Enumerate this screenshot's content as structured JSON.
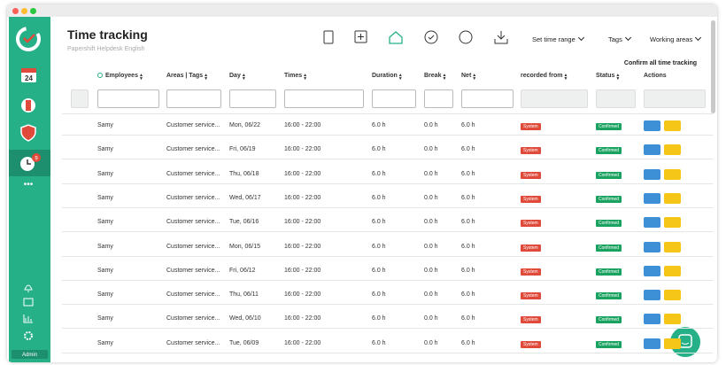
{
  "sidebar": {
    "calendar_day": "24",
    "badge": "9",
    "user": "Admin"
  },
  "header": {
    "title": "Time tracking",
    "subtitle": "Papershift Helpdesk English"
  },
  "filters": [
    "Set time range",
    "Tags",
    "Working areas"
  ],
  "confirm_all": "Confirm all time tracking",
  "table": {
    "columns": [
      "Employees",
      "Areas | Tags",
      "Day",
      "Times",
      "Duration",
      "Break",
      "Net",
      "recorded from",
      "Status",
      "Actions"
    ],
    "rows": [
      [
        "Samy",
        "Customer service...",
        "Mon, 06/22",
        "16:00 - 22:00",
        "6.0 h",
        "0.0 h",
        "6.0 h",
        "System",
        "Confirmed"
      ],
      [
        "Samy",
        "Customer service...",
        "Fri, 06/19",
        "16:00 - 22:00",
        "6.0 h",
        "0.0 h",
        "6.0 h",
        "System",
        "Confirmed"
      ],
      [
        "Samy",
        "Customer service...",
        "Thu, 06/18",
        "16:00 - 22:00",
        "6.0 h",
        "0.0 h",
        "6.0 h",
        "System",
        "Confirmed"
      ],
      [
        "Samy",
        "Customer service...",
        "Wed, 06/17",
        "16:00 - 22:00",
        "6.0 h",
        "0.0 h",
        "6.0 h",
        "System",
        "Confirmed"
      ],
      [
        "Samy",
        "Customer service...",
        "Tue, 06/16",
        "16:00 - 22:00",
        "6.0 h",
        "0.0 h",
        "6.0 h",
        "System",
        "Confirmed"
      ],
      [
        "Samy",
        "Customer service...",
        "Mon, 06/15",
        "16:00 - 22:00",
        "6.0 h",
        "0.0 h",
        "6.0 h",
        "System",
        "Confirmed"
      ],
      [
        "Samy",
        "Customer service...",
        "Fri, 06/12",
        "16:00 - 22:00",
        "6.0 h",
        "0.0 h",
        "6.0 h",
        "System",
        "Confirmed"
      ],
      [
        "Samy",
        "Customer service...",
        "Thu, 06/11",
        "16:00 - 22:00",
        "6.0 h",
        "0.0 h",
        "6.0 h",
        "System",
        "Confirmed"
      ],
      [
        "Samy",
        "Customer service...",
        "Wed, 06/10",
        "16:00 - 22:00",
        "6.0 h",
        "0.0 h",
        "6.0 h",
        "System",
        "Confirmed"
      ],
      [
        "Samy",
        "Customer service...",
        "Tue, 06/09",
        "16:00 - 22:00",
        "6.0 h",
        "0.0 h",
        "6.0 h",
        "System",
        "Confirmed"
      ]
    ]
  }
}
